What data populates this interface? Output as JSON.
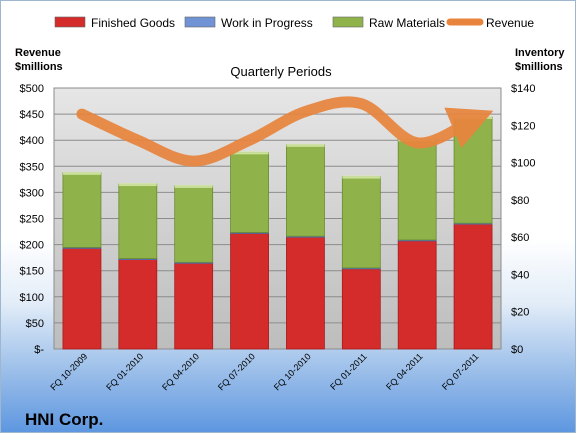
{
  "chart_data": {
    "type": "bar",
    "stacked": true,
    "subtitle": "Quarterly Periods",
    "company": "HNI Corp.",
    "left_axis_title": [
      "Revenue",
      "$millions"
    ],
    "right_axis_title": [
      "Inventory",
      "$millions"
    ],
    "categories": [
      "FQ 10-2009",
      "FQ 01-2010",
      "FQ 04-2010",
      "FQ 07-2010",
      "FQ 10-2010",
      "FQ 01-2011",
      "FQ 04-2011",
      "FQ 07-2011"
    ],
    "left_ylim": [
      0,
      500
    ],
    "left_ticks": [
      "$-",
      "$50",
      "$100",
      "$150",
      "$200",
      "$250",
      "$300",
      "$350",
      "$400",
      "$450",
      "$500"
    ],
    "right_ylim": [
      0,
      140
    ],
    "right_ticks": [
      "$0",
      "$20",
      "$40",
      "$60",
      "$80",
      "$100",
      "$120",
      "$140"
    ],
    "series": [
      {
        "name": "Finished Goods",
        "axis": "right",
        "color": "#d42b2b",
        "values": [
          54,
          48,
          46,
          62,
          60,
          43,
          58,
          67
        ]
      },
      {
        "name": "Work in Progress",
        "axis": "right",
        "color": "#6f93d4",
        "values": [
          0.5,
          0.5,
          0.5,
          0.5,
          0.5,
          0.5,
          0.5,
          0.5
        ]
      },
      {
        "name": "Raw Materials",
        "axis": "right",
        "color": "#8fb34a",
        "values": [
          40,
          40,
          41,
          43,
          49,
          49,
          54,
          57
        ]
      }
    ],
    "line_series": {
      "name": "Revenue",
      "axis": "left",
      "color": "#e8843d",
      "values": [
        450,
        400,
        360,
        400,
        455,
        470,
        395,
        440
      ]
    },
    "grid": true,
    "legend_position": "top"
  }
}
